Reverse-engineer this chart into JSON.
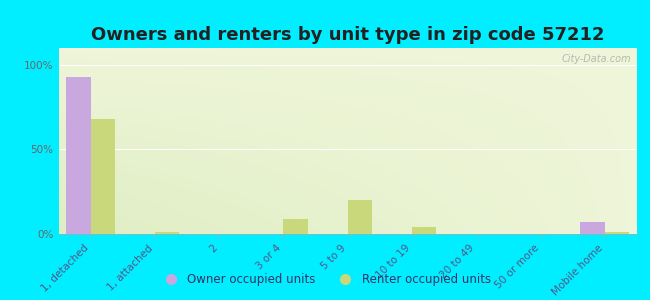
{
  "title": "Owners and renters by unit type in zip code 57212",
  "categories": [
    "1, detached",
    "1, attached",
    "2",
    "3 or 4",
    "5 to 9",
    "10 to 19",
    "20 to 49",
    "50 or more",
    "Mobile home"
  ],
  "owner_values": [
    93,
    0,
    0,
    0,
    0,
    0,
    0,
    0,
    7
  ],
  "renter_values": [
    68,
    1,
    0,
    9,
    20,
    4,
    0,
    0,
    1
  ],
  "owner_color": "#c9a8e0",
  "renter_color": "#c8d87a",
  "background_color": "#00eeff",
  "plot_bg_color": "#eef5d8",
  "ylabel_ticks": [
    "0%",
    "50%",
    "100%"
  ],
  "ytick_values": [
    0,
    50,
    100
  ],
  "ylim": [
    0,
    110
  ],
  "bar_width": 0.38,
  "watermark": "City-Data.com",
  "legend_owner": "Owner occupied units",
  "legend_renter": "Renter occupied units",
  "title_fontsize": 13,
  "tick_fontsize": 7.5
}
